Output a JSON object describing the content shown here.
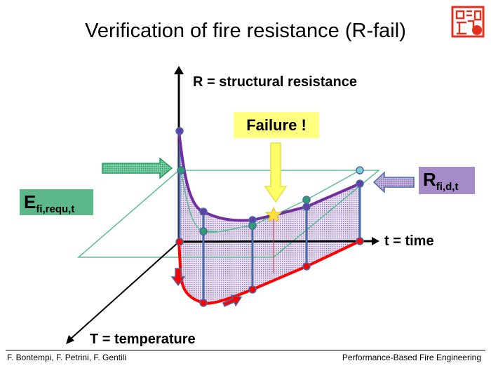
{
  "title": "Verification of fire resistance (R-fail)",
  "axes": {
    "r_axis": "R = structural resistance",
    "t_axis": "t = time",
    "temp_axis": "T = temperature"
  },
  "failure_label": "Failure !",
  "e_label": {
    "main": "E",
    "sub": "fi,requ,t"
  },
  "r_label": {
    "main": "R",
    "sub": "fi,d,t"
  },
  "logo": {
    "type": "red seal stamp"
  },
  "footer": {
    "authors": "F. Bontempi, F. Petrini, F. Gentili",
    "course": "Performance-Based Fire Engineering"
  },
  "colors": {
    "resistance_curve": "#7030a0",
    "temperature_curve": "#ff0000",
    "demand_plane": "#2e9e6e",
    "failure": "#ffff66",
    "e_box": "#5cb88a",
    "r_box": "#a58cc8"
  }
}
